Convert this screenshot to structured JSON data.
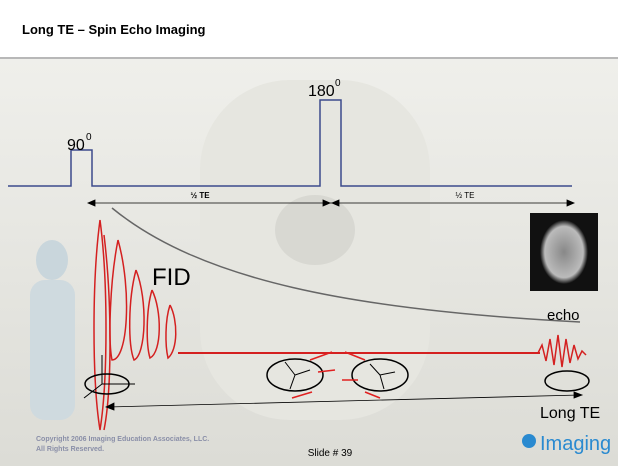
{
  "header": {
    "title": "Long TE – Spin Echo Imaging"
  },
  "pulses": [
    {
      "label": "90",
      "superscript": "0"
    },
    {
      "label": "180",
      "superscript": "0"
    }
  ],
  "intervals": [
    "½ TE",
    "½ TE"
  ],
  "labels": {
    "fid": "FID",
    "echo": "echo",
    "long_te": "Long TE"
  },
  "footer": {
    "copyright": [
      "Copyright 2006 Imaging Education Associates, LLC.",
      "All Rights Reserved."
    ],
    "slide": "Slide # 39",
    "logo": "Imaging"
  }
}
